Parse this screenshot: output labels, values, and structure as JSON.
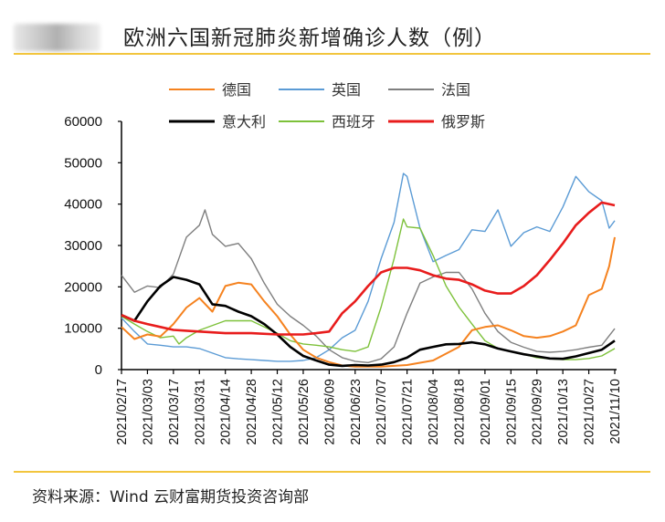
{
  "header": {
    "title": "欧洲六国新冠肺炎新增确诊人数（例）"
  },
  "footer": {
    "source": "资料来源：Wind  云财富期货投资咨询部"
  },
  "chart_data": {
    "type": "line",
    "title": "欧洲六国新冠肺炎新增确诊人数（例）",
    "xlabel": "",
    "ylabel": "",
    "ylim": [
      0,
      60000
    ],
    "yticks": [
      "0",
      "10000",
      "20000",
      "30000",
      "40000",
      "50000",
      "60000"
    ],
    "xlim": [
      "2021/02/17",
      "2021/11/10"
    ],
    "xticks": [
      "2021/02/17",
      "2021/03/03",
      "2021/03/17",
      "2021/03/31",
      "2021/04/14",
      "2021/04/28",
      "2021/05/12",
      "2021/05/26",
      "2021/06/09",
      "2021/06/23",
      "2021/07/07",
      "2021/07/21",
      "2021/08/04",
      "2021/08/18",
      "2021/09/01",
      "2021/09/15",
      "2021/09/29",
      "2021/10/13",
      "2021/10/27",
      "2021/11/10"
    ],
    "grid": false,
    "legend_position": "top",
    "series": [
      {
        "name": "德国",
        "color": "#f5821f",
        "points": [
          [
            "2021/02/17",
            10300
          ],
          [
            "2021/02/24",
            7400
          ],
          [
            "2021/03/03",
            8500
          ],
          [
            "2021/03/10",
            8000
          ],
          [
            "2021/03/17",
            11000
          ],
          [
            "2021/03/24",
            15000
          ],
          [
            "2021/03/31",
            17300
          ],
          [
            "2021/04/07",
            14000
          ],
          [
            "2021/04/14",
            20200
          ],
          [
            "2021/04/21",
            21000
          ],
          [
            "2021/04/28",
            20600
          ],
          [
            "2021/05/05",
            16500
          ],
          [
            "2021/05/12",
            12900
          ],
          [
            "2021/05/19",
            8500
          ],
          [
            "2021/05/26",
            4800
          ],
          [
            "2021/06/02",
            2900
          ],
          [
            "2021/06/09",
            1800
          ],
          [
            "2021/06/16",
            1000
          ],
          [
            "2021/06/23",
            700
          ],
          [
            "2021/07/07",
            700
          ],
          [
            "2021/07/21",
            1100
          ],
          [
            "2021/08/04",
            2200
          ],
          [
            "2021/08/18",
            5500
          ],
          [
            "2021/08/25",
            9500
          ],
          [
            "2021/09/01",
            10300
          ],
          [
            "2021/09/08",
            10700
          ],
          [
            "2021/09/15",
            9500
          ],
          [
            "2021/09/22",
            8100
          ],
          [
            "2021/09/29",
            7700
          ],
          [
            "2021/10/06",
            8100
          ],
          [
            "2021/10/13",
            9200
          ],
          [
            "2021/10/20",
            10700
          ],
          [
            "2021/10/27",
            18000
          ],
          [
            "2021/11/03",
            19500
          ],
          [
            "2021/11/07",
            25000
          ],
          [
            "2021/11/10",
            32000
          ]
        ]
      },
      {
        "name": "英国",
        "color": "#5b9bd5",
        "points": [
          [
            "2021/02/17",
            12500
          ],
          [
            "2021/02/24",
            9200
          ],
          [
            "2021/03/03",
            6200
          ],
          [
            "2021/03/10",
            5900
          ],
          [
            "2021/03/17",
            5500
          ],
          [
            "2021/03/24",
            5500
          ],
          [
            "2021/03/31",
            5100
          ],
          [
            "2021/04/07",
            4000
          ],
          [
            "2021/04/14",
            2900
          ],
          [
            "2021/04/21",
            2600
          ],
          [
            "2021/04/28",
            2400
          ],
          [
            "2021/05/05",
            2200
          ],
          [
            "2021/05/12",
            2000
          ],
          [
            "2021/05/19",
            2000
          ],
          [
            "2021/05/26",
            2200
          ],
          [
            "2021/06/02",
            2900
          ],
          [
            "2021/06/09",
            4800
          ],
          [
            "2021/06/16",
            7700
          ],
          [
            "2021/06/23",
            9500
          ],
          [
            "2021/06/30",
            16500
          ],
          [
            "2021/07/07",
            26800
          ],
          [
            "2021/07/14",
            35600
          ],
          [
            "2021/07/19",
            47400
          ],
          [
            "2021/07/21",
            46700
          ],
          [
            "2021/07/28",
            34200
          ],
          [
            "2021/08/04",
            26100
          ],
          [
            "2021/08/11",
            27600
          ],
          [
            "2021/08/18",
            29000
          ],
          [
            "2021/08/25",
            33800
          ],
          [
            "2021/09/01",
            33400
          ],
          [
            "2021/09/08",
            38600
          ],
          [
            "2021/09/15",
            29800
          ],
          [
            "2021/09/22",
            33100
          ],
          [
            "2021/09/29",
            34500
          ],
          [
            "2021/10/06",
            33400
          ],
          [
            "2021/10/13",
            39300
          ],
          [
            "2021/10/20",
            46700
          ],
          [
            "2021/10/27",
            43000
          ],
          [
            "2021/11/03",
            40800
          ],
          [
            "2021/11/07",
            34200
          ],
          [
            "2021/11/10",
            36000
          ]
        ]
      },
      {
        "name": "法国",
        "color": "#7f7f7f",
        "points": [
          [
            "2021/02/17",
            22800
          ],
          [
            "2021/02/24",
            18700
          ],
          [
            "2021/03/03",
            20200
          ],
          [
            "2021/03/10",
            19800
          ],
          [
            "2021/03/17",
            23100
          ],
          [
            "2021/03/24",
            32000
          ],
          [
            "2021/03/31",
            34900
          ],
          [
            "2021/04/03",
            38600
          ],
          [
            "2021/04/07",
            32700
          ],
          [
            "2021/04/14",
            29800
          ],
          [
            "2021/04/21",
            30500
          ],
          [
            "2021/04/28",
            26800
          ],
          [
            "2021/05/05",
            20900
          ],
          [
            "2021/05/12",
            15800
          ],
          [
            "2021/05/19",
            12900
          ],
          [
            "2021/05/26",
            10700
          ],
          [
            "2021/06/02",
            8100
          ],
          [
            "2021/06/09",
            4800
          ],
          [
            "2021/06/16",
            2900
          ],
          [
            "2021/06/23",
            2000
          ],
          [
            "2021/06/30",
            1700
          ],
          [
            "2021/07/07",
            2600
          ],
          [
            "2021/07/14",
            5500
          ],
          [
            "2021/07/21",
            13600
          ],
          [
            "2021/07/28",
            20900
          ],
          [
            "2021/08/04",
            22400
          ],
          [
            "2021/08/11",
            23500
          ],
          [
            "2021/08/18",
            23500
          ],
          [
            "2021/08/25",
            19500
          ],
          [
            "2021/09/01",
            13600
          ],
          [
            "2021/09/08",
            9200
          ],
          [
            "2021/09/15",
            6600
          ],
          [
            "2021/09/22",
            5400
          ],
          [
            "2021/09/29",
            4400
          ],
          [
            "2021/10/06",
            4200
          ],
          [
            "2021/10/13",
            4400
          ],
          [
            "2021/10/20",
            4800
          ],
          [
            "2021/10/27",
            5400
          ],
          [
            "2021/11/03",
            5900
          ],
          [
            "2021/11/10",
            9900
          ]
        ]
      },
      {
        "name": "意大利",
        "color": "#000000",
        "points": [
          [
            "2021/02/17",
            13200
          ],
          [
            "2021/02/24",
            11800
          ],
          [
            "2021/03/03",
            16500
          ],
          [
            "2021/03/10",
            20200
          ],
          [
            "2021/03/17",
            22400
          ],
          [
            "2021/03/24",
            21700
          ],
          [
            "2021/03/31",
            20600
          ],
          [
            "2021/04/07",
            15800
          ],
          [
            "2021/04/14",
            15400
          ],
          [
            "2021/04/21",
            14000
          ],
          [
            "2021/04/28",
            12900
          ],
          [
            "2021/05/05",
            11000
          ],
          [
            "2021/05/12",
            8500
          ],
          [
            "2021/05/19",
            5500
          ],
          [
            "2021/05/26",
            3300
          ],
          [
            "2021/06/02",
            2200
          ],
          [
            "2021/06/09",
            1200
          ],
          [
            "2021/06/16",
            900
          ],
          [
            "2021/06/23",
            1100
          ],
          [
            "2021/06/30",
            1000
          ],
          [
            "2021/07/07",
            1200
          ],
          [
            "2021/07/14",
            1800
          ],
          [
            "2021/07/21",
            2900
          ],
          [
            "2021/07/28",
            4800
          ],
          [
            "2021/08/04",
            5500
          ],
          [
            "2021/08/11",
            6100
          ],
          [
            "2021/08/18",
            6200
          ],
          [
            "2021/08/25",
            6600
          ],
          [
            "2021/09/01",
            6100
          ],
          [
            "2021/09/08",
            5100
          ],
          [
            "2021/09/15",
            4400
          ],
          [
            "2021/09/22",
            3700
          ],
          [
            "2021/09/29",
            3200
          ],
          [
            "2021/10/06",
            2700
          ],
          [
            "2021/10/13",
            2600
          ],
          [
            "2021/10/20",
            3200
          ],
          [
            "2021/10/27",
            4000
          ],
          [
            "2021/11/03",
            4800
          ],
          [
            "2021/11/10",
            7000
          ]
        ]
      },
      {
        "name": "西班牙",
        "color": "#7dc13a",
        "points": [
          [
            "2021/02/17",
            12900
          ],
          [
            "2021/02/24",
            11000
          ],
          [
            "2021/03/03",
            9200
          ],
          [
            "2021/03/10",
            7700
          ],
          [
            "2021/03/17",
            8100
          ],
          [
            "2021/03/20",
            6200
          ],
          [
            "2021/03/24",
            7700
          ],
          [
            "2021/03/31",
            9500
          ],
          [
            "2021/04/14",
            11800
          ],
          [
            "2021/04/28",
            11800
          ],
          [
            "2021/05/05",
            10300
          ],
          [
            "2021/05/12",
            8800
          ],
          [
            "2021/05/19",
            7000
          ],
          [
            "2021/05/26",
            6200
          ],
          [
            "2021/06/02",
            5900
          ],
          [
            "2021/06/09",
            5500
          ],
          [
            "2021/06/16",
            4800
          ],
          [
            "2021/06/23",
            4400
          ],
          [
            "2021/06/30",
            5500
          ],
          [
            "2021/07/07",
            15100
          ],
          [
            "2021/07/14",
            26800
          ],
          [
            "2021/07/19",
            36400
          ],
          [
            "2021/07/21",
            34500
          ],
          [
            "2021/07/28",
            34200
          ],
          [
            "2021/08/04",
            27600
          ],
          [
            "2021/08/11",
            20200
          ],
          [
            "2021/08/18",
            15100
          ],
          [
            "2021/08/25",
            11000
          ],
          [
            "2021/09/01",
            7000
          ],
          [
            "2021/09/08",
            5100
          ],
          [
            "2021/09/15",
            4400
          ],
          [
            "2021/09/22",
            3700
          ],
          [
            "2021/09/29",
            2900
          ],
          [
            "2021/10/06",
            2600
          ],
          [
            "2021/10/13",
            2400
          ],
          [
            "2021/10/20",
            2400
          ],
          [
            "2021/10/27",
            2700
          ],
          [
            "2021/11/03",
            3300
          ],
          [
            "2021/11/10",
            5100
          ]
        ]
      },
      {
        "name": "俄罗斯",
        "color": "#e81c1c",
        "points": [
          [
            "2021/02/17",
            13200
          ],
          [
            "2021/02/24",
            11800
          ],
          [
            "2021/03/03",
            11000
          ],
          [
            "2021/03/10",
            10300
          ],
          [
            "2021/03/17",
            9600
          ],
          [
            "2021/03/24",
            9400
          ],
          [
            "2021/03/31",
            9200
          ],
          [
            "2021/04/14",
            8800
          ],
          [
            "2021/04/28",
            8800
          ],
          [
            "2021/05/12",
            8500
          ],
          [
            "2021/05/26",
            8500
          ],
          [
            "2021/06/02",
            8800
          ],
          [
            "2021/06/09",
            9200
          ],
          [
            "2021/06/16",
            13600
          ],
          [
            "2021/06/23",
            16500
          ],
          [
            "2021/06/30",
            20200
          ],
          [
            "2021/07/07",
            23500
          ],
          [
            "2021/07/14",
            24600
          ],
          [
            "2021/07/21",
            24600
          ],
          [
            "2021/07/28",
            24000
          ],
          [
            "2021/08/04",
            22800
          ],
          [
            "2021/08/11",
            22000
          ],
          [
            "2021/08/18",
            21700
          ],
          [
            "2021/08/25",
            20600
          ],
          [
            "2021/09/01",
            19100
          ],
          [
            "2021/09/08",
            18400
          ],
          [
            "2021/09/15",
            18400
          ],
          [
            "2021/09/22",
            20200
          ],
          [
            "2021/09/29",
            22800
          ],
          [
            "2021/10/06",
            26500
          ],
          [
            "2021/10/13",
            30500
          ],
          [
            "2021/10/20",
            34900
          ],
          [
            "2021/10/27",
            37900
          ],
          [
            "2021/11/03",
            40400
          ],
          [
            "2021/11/10",
            39700
          ]
        ]
      }
    ]
  }
}
